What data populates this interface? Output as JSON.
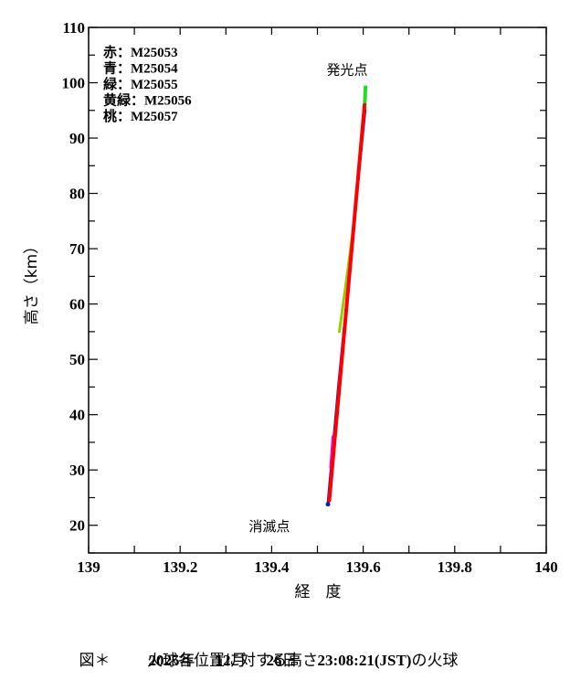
{
  "chart_data": {
    "type": "line",
    "title": "",
    "xlabel": "経　度",
    "ylabel": "高さ（km）",
    "xlim": [
      139,
      140
    ],
    "ylim": [
      15,
      110
    ],
    "x_ticks": [
      "139",
      "139.2",
      "139.4",
      "139.6",
      "139.8",
      "140"
    ],
    "x_tick_values": [
      139,
      139.2,
      139.4,
      139.6,
      139.8,
      140
    ],
    "y_ticks": [
      "20",
      "30",
      "40",
      "50",
      "60",
      "70",
      "80",
      "90",
      "100",
      "110"
    ],
    "y_tick_values": [
      20,
      30,
      40,
      50,
      60,
      70,
      80,
      90,
      100,
      110
    ],
    "grid": false,
    "legend_position": "upper-left (inside)",
    "legend": [
      {
        "label": "赤：M25053",
        "color": "#ff0000"
      },
      {
        "label": "青：M25054",
        "color": "#0000cc"
      },
      {
        "label": "緑：M25055",
        "color": "#00dd00"
      },
      {
        "label": "黄緑：M25056",
        "color": "#99cc00"
      },
      {
        "label": "桃：M25057",
        "color": "#ff00ff"
      }
    ],
    "series": [
      {
        "name": "M25054",
        "color": "#1a1aa0",
        "width": 3,
        "x": [
          139.523,
          139.546,
          139.566,
          139.586,
          139.604
        ],
        "y": [
          23.8,
          45,
          62,
          80,
          95
        ]
      },
      {
        "name": "M25056",
        "color": "#99cc00",
        "width": 3,
        "x": [
          139.548,
          139.566,
          139.585
        ],
        "y": [
          55,
          66,
          78
        ]
      },
      {
        "name": "M25055",
        "color": "#22dd22",
        "width": 4,
        "x": [
          139.603,
          139.605
        ],
        "y": [
          95.5,
          99.2
        ]
      },
      {
        "name": "M25057",
        "color": "#ee00ee",
        "width": 4,
        "x": [
          139.53,
          139.535
        ],
        "y": [
          30.5,
          36
        ]
      },
      {
        "name": "M25053",
        "color": "#ff0000",
        "width": 4,
        "x": [
          139.526,
          139.603
        ],
        "y": [
          24.5,
          96
        ]
      }
    ],
    "annotations": [
      {
        "text": "発光点",
        "x": 139.565,
        "y": 101.5
      },
      {
        "text": "消滅点",
        "x": 139.395,
        "y": 19
      }
    ]
  },
  "caption": {
    "fig_label": "図＊",
    "year": "2025",
    "year_unit": "年",
    "month": "12",
    "month_unit": "月",
    "day": "26",
    "day_unit": "日",
    "time": "23:08:21(JST)",
    "suffix": "の火球",
    "line2": "火球各位置に対する高さ"
  }
}
